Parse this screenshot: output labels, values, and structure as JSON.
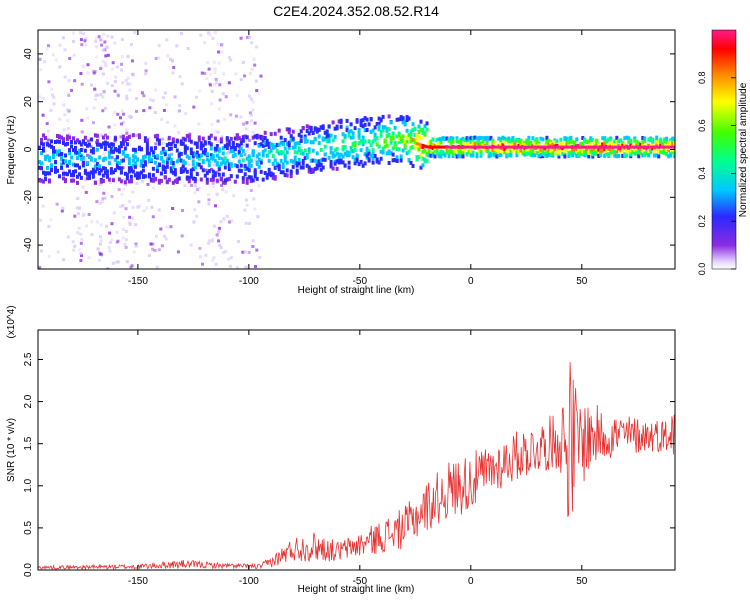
{
  "figure": {
    "title": "C2E4.2024.352.08.52.R14"
  },
  "chart_data": [
    {
      "type": "heatmap",
      "xlabel": "Height of straight line (km)",
      "ylabel": "Frequency (Hz)",
      "xlim": [
        -195,
        92
      ],
      "ylim": [
        -50,
        50
      ],
      "xticks": [
        -150,
        -100,
        -50,
        0,
        50
      ],
      "yticks": [
        -40,
        -20,
        0,
        20,
        40
      ],
      "colorbar": {
        "label": "Normalized spectral amplitude",
        "range": [
          0,
          1
        ],
        "ticks": [
          0.0,
          0.2,
          0.4,
          0.6,
          0.8
        ],
        "colormap": "rainbow (white → violet → blue → cyan → green → yellow → red → pink)"
      },
      "ridge": {
        "description": "band of high amplitude centred near 0 Hz",
        "center_points": [
          [
            -195,
            -4
          ],
          [
            -150,
            -4
          ],
          [
            -100,
            -4
          ],
          [
            -80,
            -1
          ],
          [
            -60,
            2
          ],
          [
            -40,
            4
          ],
          [
            -30,
            4
          ],
          [
            -20,
            1
          ],
          [
            0,
            1
          ],
          [
            50,
            1
          ],
          [
            90,
            1
          ]
        ],
        "peak_amplitude_points": [
          [
            -180,
            0.3
          ],
          [
            -130,
            0.3
          ],
          [
            -100,
            0.35
          ],
          [
            -70,
            0.4
          ],
          [
            -45,
            0.5
          ],
          [
            -30,
            0.6
          ],
          [
            -20,
            0.9
          ],
          [
            0,
            0.95
          ],
          [
            50,
            0.98
          ],
          [
            90,
            0.98
          ]
        ]
      }
    },
    {
      "type": "line",
      "xlabel": "Height of straight line (km)",
      "ylabel": "SNR (10 * v/v)",
      "y_multiplier": "(x10^4)",
      "xlim": [
        -195,
        92
      ],
      "ylim": [
        0,
        2.85
      ],
      "xticks": [
        -150,
        -100,
        -50,
        0,
        50
      ],
      "yticks": [
        0.0,
        0.5,
        1.0,
        1.5,
        2.0,
        2.5
      ],
      "series_color": "#e83030",
      "envelope": {
        "description": "noisy SNR trace; mean and fluctuation amplitude vs height",
        "x": [
          -195,
          -150,
          -130,
          -110,
          -95,
          -88,
          -80,
          -70,
          -60,
          -50,
          -40,
          -30,
          -20,
          -10,
          0,
          10,
          20,
          30,
          40,
          45,
          48,
          55,
          60,
          70,
          80,
          90,
          92
        ],
        "mean": [
          0.03,
          0.04,
          0.07,
          0.05,
          0.04,
          0.12,
          0.25,
          0.28,
          0.22,
          0.3,
          0.4,
          0.5,
          0.75,
          0.95,
          1.05,
          1.2,
          1.35,
          1.45,
          1.55,
          1.5,
          1.5,
          1.6,
          1.6,
          1.6,
          1.6,
          1.6,
          1.65
        ],
        "amplitude": [
          0.02,
          0.03,
          0.05,
          0.03,
          0.03,
          0.08,
          0.15,
          0.18,
          0.12,
          0.15,
          0.2,
          0.25,
          0.3,
          0.35,
          0.35,
          0.3,
          0.3,
          0.3,
          0.35,
          1.1,
          0.6,
          0.4,
          0.3,
          0.25,
          0.2,
          0.2,
          0.45
        ]
      }
    }
  ]
}
